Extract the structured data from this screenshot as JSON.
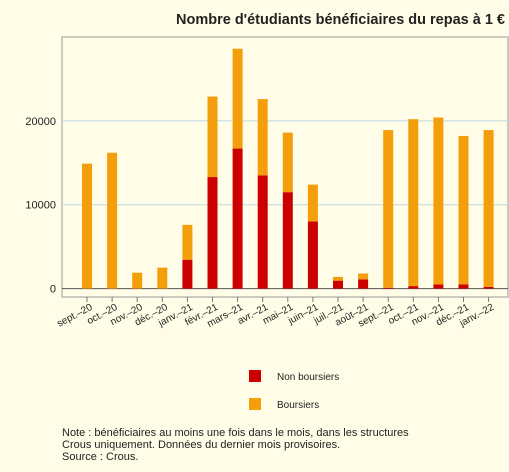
{
  "chart_data": {
    "type": "bar",
    "stacked": true,
    "title": "Nombre d'étudiants bénéficiaires du repas à 1 €",
    "categories": [
      "sept.–20",
      "oct.–20",
      "nov.–20",
      "déc.–20",
      "janv.–21",
      "févr.–21",
      "mars–21",
      "avr.–21",
      "mai–21",
      "juin–21",
      "juil.–21",
      "août–21",
      "sept.–21",
      "oct.–21",
      "nov.–21",
      "déc.–21",
      "janv.–22"
    ],
    "series": [
      {
        "name": "Non boursiers",
        "color": "#cc0000",
        "values": [
          0,
          0,
          0,
          0,
          3450,
          13300,
          16700,
          13500,
          11500,
          8000,
          950,
          1100,
          100,
          300,
          500,
          500,
          200
        ]
      },
      {
        "name": "Boursiers",
        "color": "#f59e0b",
        "values": [
          14900,
          16200,
          1900,
          2500,
          4150,
          9600,
          11900,
          9100,
          7100,
          4400,
          450,
          700,
          18800,
          19900,
          19900,
          17700,
          18700
        ]
      }
    ],
    "ylim": [
      -1000,
      30000
    ],
    "yticks": [
      0,
      10000,
      20000
    ],
    "grid": true,
    "notes": [
      "Note : bénéficiaires au moins une fois dans le mois, dans les structures",
      "Crous uniquement. Données du dernier mois provisoires.",
      "Source : Crous."
    ]
  }
}
